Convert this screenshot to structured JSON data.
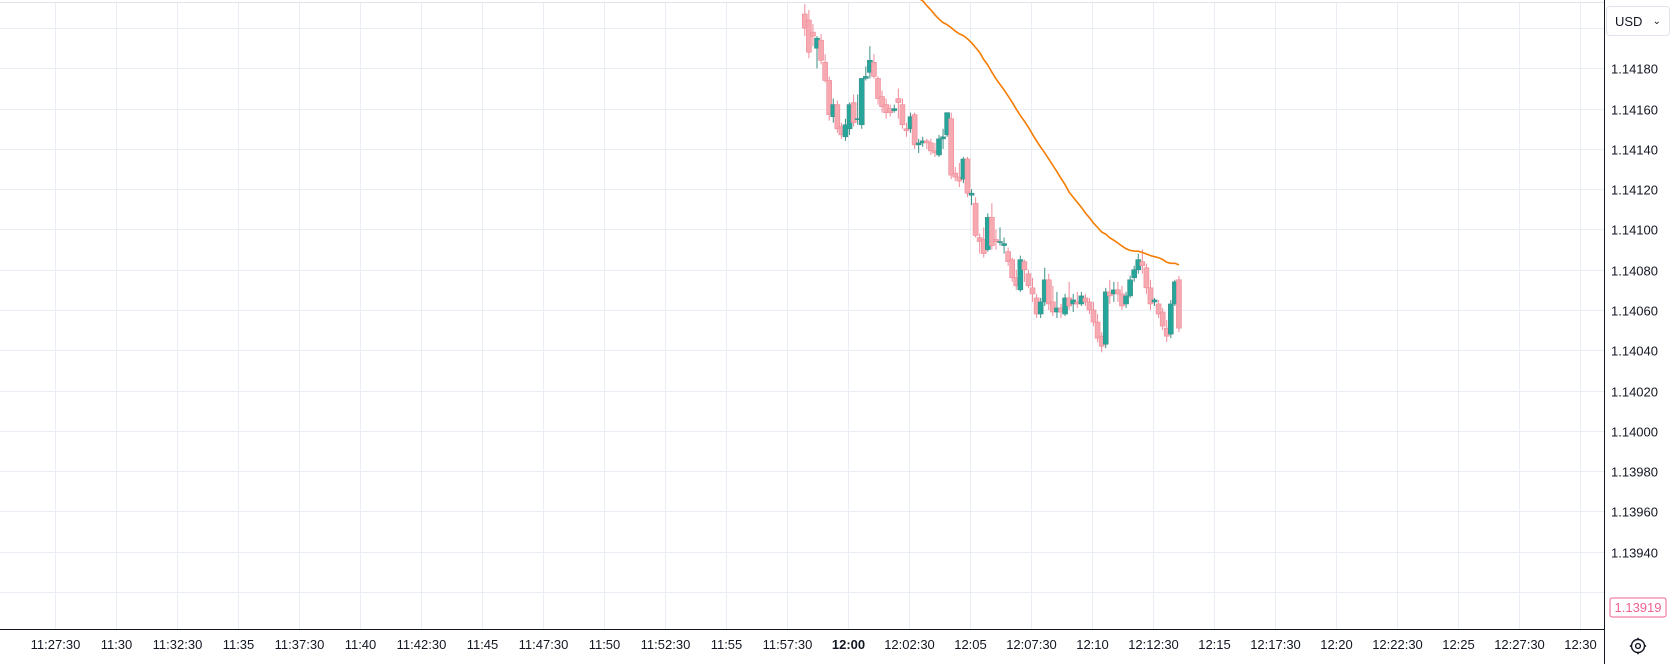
{
  "currency": {
    "label": "USD"
  },
  "colors": {
    "up": "#26a69a",
    "down": "#f7a9b2",
    "up_stroke": "#3d8f87",
    "down_stroke": "#ef8a97",
    "ma": "#f57c00",
    "grid": "#e8eef3",
    "last_price": "#f06292"
  },
  "chart_data": {
    "type": "candlestick",
    "y_ticks": [
      "1.14180",
      "1.14160",
      "1.14140",
      "1.14120",
      "1.14100",
      "1.14080",
      "1.14060",
      "1.14040",
      "1.14020",
      "1.14000",
      "1.13980",
      "1.13960",
      "1.13940"
    ],
    "x_ticks": [
      "11:27:30",
      "11:30",
      "11:32:30",
      "11:35",
      "11:37:30",
      "11:40",
      "11:42:30",
      "11:45",
      "11:47:30",
      "11:50",
      "11:52:30",
      "11:55",
      "11:57:30",
      "12:00",
      "12:02:30",
      "12:05",
      "12:07:30",
      "12:10",
      "12:12:30",
      "12:15",
      "12:17:30",
      "12:20",
      "12:22:30",
      "12:25",
      "12:27:30",
      "12:30"
    ],
    "x_tick_bold": "12:00",
    "last_price": "1.13919",
    "ylim": [
      1.13912,
      1.14207
    ],
    "time_start": "11:26:15",
    "time_step_seconds": 10,
    "candles": [
      {
        "t": "11:58:15",
        "o": 1.14207,
        "h": 1.14212,
        "l": 1.14196,
        "c": 1.142
      },
      {
        "t": "11:58:25",
        "o": 1.14204,
        "h": 1.14209,
        "l": 1.14185,
        "c": 1.14188
      },
      {
        "t": "11:58:35",
        "o": 1.14198,
        "h": 1.14202,
        "l": 1.14191,
        "c": 1.14196
      },
      {
        "t": "11:58:45",
        "o": 1.1419,
        "h": 1.14196,
        "l": 1.1418,
        "c": 1.14195
      },
      {
        "t": "11:58:55",
        "o": 1.14194,
        "h": 1.14197,
        "l": 1.14182,
        "c": 1.14184
      },
      {
        "t": "11:59:05",
        "o": 1.14183,
        "h": 1.14187,
        "l": 1.14173,
        "c": 1.14174
      },
      {
        "t": "11:59:15",
        "o": 1.14174,
        "h": 1.14176,
        "l": 1.14154,
        "c": 1.14157
      },
      {
        "t": "11:59:25",
        "o": 1.14156,
        "h": 1.14165,
        "l": 1.14153,
        "c": 1.14162
      },
      {
        "t": "11:59:35",
        "o": 1.14162,
        "h": 1.14164,
        "l": 1.14148,
        "c": 1.1415
      },
      {
        "t": "11:59:45",
        "o": 1.14151,
        "h": 1.14153,
        "l": 1.14145,
        "c": 1.14147
      },
      {
        "t": "11:59:55",
        "o": 1.14146,
        "h": 1.14155,
        "l": 1.14144,
        "c": 1.14152
      },
      {
        "t": "12:00:05",
        "o": 1.1415,
        "h": 1.14163,
        "l": 1.14147,
        "c": 1.14162
      },
      {
        "t": "12:00:15",
        "o": 1.14163,
        "h": 1.14167,
        "l": 1.14151,
        "c": 1.14153
      },
      {
        "t": "12:00:25",
        "o": 1.14155,
        "h": 1.14167,
        "l": 1.14152,
        "c": 1.14155
      },
      {
        "t": "12:00:35",
        "o": 1.14152,
        "h": 1.14175,
        "l": 1.1415,
        "c": 1.14175
      },
      {
        "t": "12:00:45",
        "o": 1.14175,
        "h": 1.14181,
        "l": 1.14174,
        "c": 1.14176
      },
      {
        "t": "12:00:55",
        "o": 1.14178,
        "h": 1.14191,
        "l": 1.14175,
        "c": 1.14184
      },
      {
        "t": "12:01:05",
        "o": 1.14183,
        "h": 1.14187,
        "l": 1.14175,
        "c": 1.14176
      },
      {
        "t": "12:01:15",
        "o": 1.14175,
        "h": 1.14176,
        "l": 1.14162,
        "c": 1.14165
      },
      {
        "t": "12:01:25",
        "o": 1.14166,
        "h": 1.14169,
        "l": 1.14158,
        "c": 1.14161
      },
      {
        "t": "12:01:35",
        "o": 1.14162,
        "h": 1.14165,
        "l": 1.14155,
        "c": 1.14158
      },
      {
        "t": "12:01:45",
        "o": 1.1416,
        "h": 1.14162,
        "l": 1.14156,
        "c": 1.14158
      },
      {
        "t": "12:01:55",
        "o": 1.14159,
        "h": 1.14162,
        "l": 1.14158,
        "c": 1.1416
      },
      {
        "t": "12:02:05",
        "o": 1.14165,
        "h": 1.1417,
        "l": 1.14155,
        "c": 1.14163
      },
      {
        "t": "12:02:15",
        "o": 1.14162,
        "h": 1.14165,
        "l": 1.1415,
        "c": 1.14152
      },
      {
        "t": "12:02:25",
        "o": 1.1415,
        "h": 1.14153,
        "l": 1.14146,
        "c": 1.14149
      },
      {
        "t": "12:02:35",
        "o": 1.1415,
        "h": 1.14158,
        "l": 1.14148,
        "c": 1.14156
      },
      {
        "t": "12:02:45",
        "o": 1.14157,
        "h": 1.14158,
        "l": 1.1414,
        "c": 1.14142
      },
      {
        "t": "12:02:55",
        "o": 1.14142,
        "h": 1.14145,
        "l": 1.14138,
        "c": 1.14143
      },
      {
        "t": "12:03:05",
        "o": 1.14143,
        "h": 1.14146,
        "l": 1.14141,
        "c": 1.14144
      },
      {
        "t": "12:03:15",
        "o": 1.14144,
        "h": 1.14145,
        "l": 1.1414,
        "c": 1.14143
      },
      {
        "t": "12:03:25",
        "o": 1.14143,
        "h": 1.14145,
        "l": 1.14137,
        "c": 1.14139
      },
      {
        "t": "12:03:35",
        "o": 1.14139,
        "h": 1.14143,
        "l": 1.14136,
        "c": 1.14138
      },
      {
        "t": "12:03:45",
        "o": 1.14137,
        "h": 1.14147,
        "l": 1.14136,
        "c": 1.14145
      },
      {
        "t": "12:03:55",
        "o": 1.14145,
        "h": 1.1415,
        "l": 1.1414,
        "c": 1.14146
      },
      {
        "t": "12:04:05",
        "o": 1.14147,
        "h": 1.14158,
        "l": 1.14146,
        "c": 1.14158
      },
      {
        "t": "12:04:15",
        "o": 1.14155,
        "h": 1.14158,
        "l": 1.14125,
        "c": 1.14127
      },
      {
        "t": "12:04:25",
        "o": 1.14128,
        "h": 1.14131,
        "l": 1.14124,
        "c": 1.14126
      },
      {
        "t": "12:04:35",
        "o": 1.14126,
        "h": 1.14133,
        "l": 1.14121,
        "c": 1.14124
      },
      {
        "t": "12:04:45",
        "o": 1.14125,
        "h": 1.14136,
        "l": 1.14123,
        "c": 1.14135
      },
      {
        "t": "12:04:55",
        "o": 1.14135,
        "h": 1.14136,
        "l": 1.14116,
        "c": 1.14118
      },
      {
        "t": "12:05:05",
        "o": 1.14117,
        "h": 1.1412,
        "l": 1.14112,
        "c": 1.14118
      },
      {
        "t": "12:05:15",
        "o": 1.14113,
        "h": 1.14116,
        "l": 1.14096,
        "c": 1.14097
      },
      {
        "t": "12:05:25",
        "o": 1.14096,
        "h": 1.14098,
        "l": 1.14088,
        "c": 1.14094
      },
      {
        "t": "12:05:35",
        "o": 1.14095,
        "h": 1.14101,
        "l": 1.14086,
        "c": 1.14088
      },
      {
        "t": "12:05:45",
        "o": 1.1409,
        "h": 1.14108,
        "l": 1.14089,
        "c": 1.14106
      },
      {
        "t": "12:05:55",
        "o": 1.14106,
        "h": 1.14113,
        "l": 1.1409,
        "c": 1.14092
      },
      {
        "t": "12:06:05",
        "o": 1.14095,
        "h": 1.141,
        "l": 1.1409,
        "c": 1.14094
      },
      {
        "t": "12:06:15",
        "o": 1.14094,
        "h": 1.14101,
        "l": 1.14092,
        "c": 1.14094
      },
      {
        "t": "12:06:25",
        "o": 1.14092,
        "h": 1.14096,
        "l": 1.14088,
        "c": 1.14093
      },
      {
        "t": "12:06:35",
        "o": 1.14089,
        "h": 1.14091,
        "l": 1.14082,
        "c": 1.14084
      },
      {
        "t": "12:06:45",
        "o": 1.14085,
        "h": 1.14086,
        "l": 1.14074,
        "c": 1.14076
      },
      {
        "t": "12:06:55",
        "o": 1.14076,
        "h": 1.1408,
        "l": 1.1407,
        "c": 1.14072
      },
      {
        "t": "12:07:05",
        "o": 1.1407,
        "h": 1.14087,
        "l": 1.14069,
        "c": 1.14085
      },
      {
        "t": "12:07:15",
        "o": 1.14084,
        "h": 1.14085,
        "l": 1.14074,
        "c": 1.1408
      },
      {
        "t": "12:07:25",
        "o": 1.14078,
        "h": 1.1408,
        "l": 1.14071,
        "c": 1.14072
      },
      {
        "t": "12:07:35",
        "o": 1.14071,
        "h": 1.14076,
        "l": 1.14064,
        "c": 1.14068
      },
      {
        "t": "12:07:45",
        "o": 1.14066,
        "h": 1.14068,
        "l": 1.14056,
        "c": 1.14058
      },
      {
        "t": "12:07:55",
        "o": 1.14058,
        "h": 1.14066,
        "l": 1.14056,
        "c": 1.14064
      },
      {
        "t": "12:08:05",
        "o": 1.14064,
        "h": 1.14081,
        "l": 1.14062,
        "c": 1.14075
      },
      {
        "t": "12:08:15",
        "o": 1.14075,
        "h": 1.14078,
        "l": 1.1406,
        "c": 1.14063
      },
      {
        "t": "12:08:25",
        "o": 1.14064,
        "h": 1.14072,
        "l": 1.14057,
        "c": 1.14059
      },
      {
        "t": "12:08:35",
        "o": 1.14059,
        "h": 1.14069,
        "l": 1.14056,
        "c": 1.14061
      },
      {
        "t": "12:08:45",
        "o": 1.14061,
        "h": 1.14063,
        "l": 1.14056,
        "c": 1.14059
      },
      {
        "t": "12:08:55",
        "o": 1.14058,
        "h": 1.14068,
        "l": 1.14057,
        "c": 1.14066
      },
      {
        "t": "12:09:05",
        "o": 1.14066,
        "h": 1.14074,
        "l": 1.1406,
        "c": 1.14062
      },
      {
        "t": "12:09:15",
        "o": 1.14063,
        "h": 1.14068,
        "l": 1.14059,
        "c": 1.14065
      },
      {
        "t": "12:09:25",
        "o": 1.14064,
        "h": 1.14069,
        "l": 1.14061,
        "c": 1.14063
      },
      {
        "t": "12:09:35",
        "o": 1.14063,
        "h": 1.14069,
        "l": 1.14062,
        "c": 1.14067
      },
      {
        "t": "12:09:45",
        "o": 1.14066,
        "h": 1.14068,
        "l": 1.14062,
        "c": 1.14064
      },
      {
        "t": "12:09:55",
        "o": 1.14064,
        "h": 1.14066,
        "l": 1.14058,
        "c": 1.1406
      },
      {
        "t": "12:10:05",
        "o": 1.1406,
        "h": 1.14064,
        "l": 1.14052,
        "c": 1.14054
      },
      {
        "t": "12:10:15",
        "o": 1.14054,
        "h": 1.14058,
        "l": 1.14044,
        "c": 1.14046
      },
      {
        "t": "12:10:25",
        "o": 1.14047,
        "h": 1.14049,
        "l": 1.14039,
        "c": 1.14042
      },
      {
        "t": "12:10:35",
        "o": 1.14043,
        "h": 1.14071,
        "l": 1.14041,
        "c": 1.14069
      },
      {
        "t": "12:10:45",
        "o": 1.14069,
        "h": 1.14075,
        "l": 1.14063,
        "c": 1.14067
      },
      {
        "t": "12:10:55",
        "o": 1.14068,
        "h": 1.14074,
        "l": 1.14064,
        "c": 1.1407
      },
      {
        "t": "12:11:05",
        "o": 1.1407,
        "h": 1.14074,
        "l": 1.14064,
        "c": 1.14068
      },
      {
        "t": "12:11:15",
        "o": 1.14068,
        "h": 1.14072,
        "l": 1.1406,
        "c": 1.14062
      },
      {
        "t": "12:11:25",
        "o": 1.14063,
        "h": 1.14069,
        "l": 1.14061,
        "c": 1.14067
      },
      {
        "t": "12:11:35",
        "o": 1.14067,
        "h": 1.14077,
        "l": 1.14066,
        "c": 1.14075
      },
      {
        "t": "12:11:45",
        "o": 1.14076,
        "h": 1.14082,
        "l": 1.14074,
        "c": 1.1408
      },
      {
        "t": "12:11:55",
        "o": 1.1408,
        "h": 1.14088,
        "l": 1.14078,
        "c": 1.14085
      },
      {
        "t": "12:12:05",
        "o": 1.14084,
        "h": 1.1409,
        "l": 1.14078,
        "c": 1.14082
      },
      {
        "t": "12:12:15",
        "o": 1.14081,
        "h": 1.14083,
        "l": 1.14068,
        "c": 1.14071
      },
      {
        "t": "12:12:25",
        "o": 1.14071,
        "h": 1.14075,
        "l": 1.1406,
        "c": 1.14063
      },
      {
        "t": "12:12:35",
        "o": 1.14064,
        "h": 1.14066,
        "l": 1.14062,
        "c": 1.14065
      },
      {
        "t": "12:12:45",
        "o": 1.14063,
        "h": 1.14065,
        "l": 1.14056,
        "c": 1.14058
      },
      {
        "t": "12:12:55",
        "o": 1.14059,
        "h": 1.14061,
        "l": 1.1405,
        "c": 1.14052
      },
      {
        "t": "12:13:05",
        "o": 1.14051,
        "h": 1.14055,
        "l": 1.14044,
        "c": 1.14047
      },
      {
        "t": "12:13:15",
        "o": 1.14048,
        "h": 1.14065,
        "l": 1.14046,
        "c": 1.14063
      },
      {
        "t": "12:13:25",
        "o": 1.14063,
        "h": 1.14075,
        "l": 1.14062,
        "c": 1.14074
      },
      {
        "t": "12:13:35",
        "o": 1.14075,
        "h": 1.14077,
        "l": 1.14049,
        "c": 1.14051
      }
    ]
  }
}
